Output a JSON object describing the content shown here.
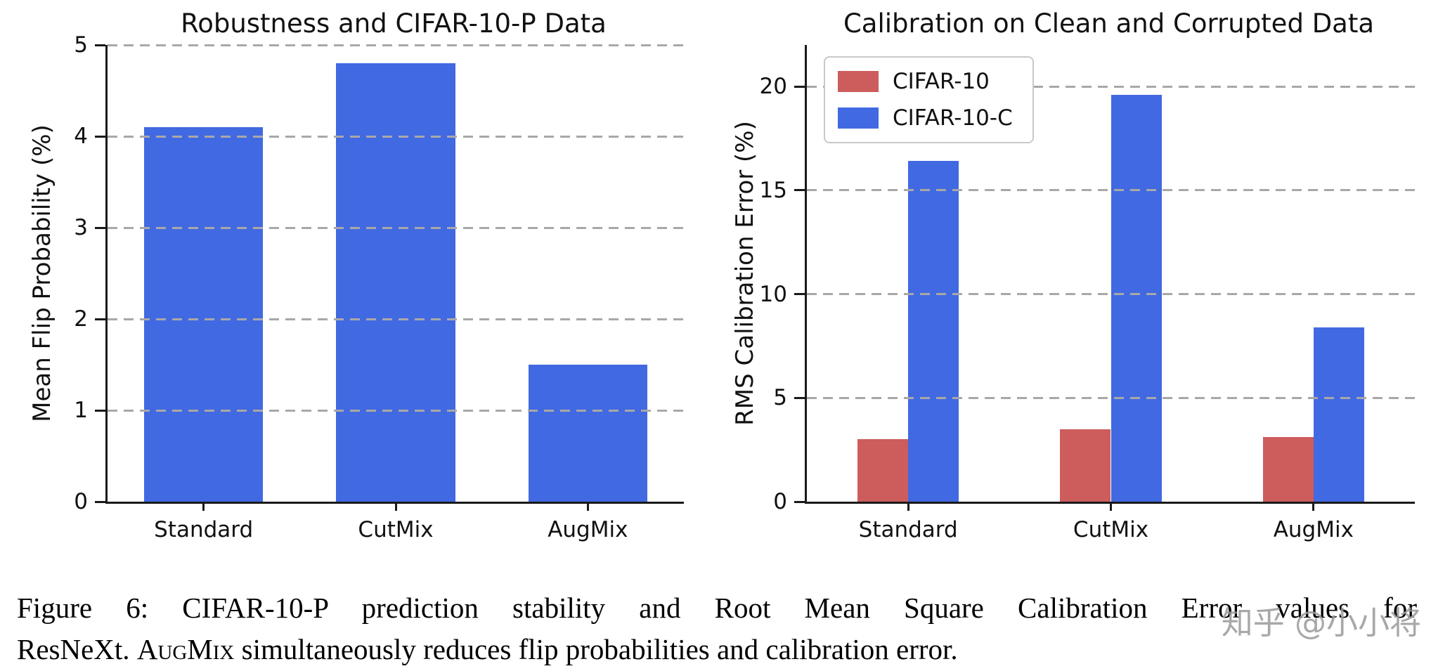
{
  "figure": {
    "caption": {
      "line1": "Figure 6: CIFAR-10-P prediction stability and Root Mean Square Calibration Error values for",
      "line2_pre": "ResNeXt. ",
      "line2_smallcaps": "AugMix",
      "line2_post": " simultaneously reduces flip probabilities and calibration error."
    },
    "watermark": "知乎 @小小将"
  },
  "chart_data": [
    {
      "type": "bar",
      "title": "Robustness and CIFAR-10-P Data",
      "xlabel": "",
      "ylabel": "Mean Flip Probability (%)",
      "categories": [
        "Standard",
        "CutMix",
        "AugMix"
      ],
      "values": [
        4.1,
        4.8,
        1.5
      ],
      "color": "#4169e1",
      "ylim": [
        0,
        5
      ],
      "yticks": [
        0,
        1,
        2,
        3,
        4,
        5
      ],
      "grid": "dashed-horizontal",
      "legend_position": "none"
    },
    {
      "type": "bar",
      "title": "Calibration on Clean and Corrupted Data",
      "xlabel": "",
      "ylabel": "RMS Calibration Error (%)",
      "categories": [
        "Standard",
        "CutMix",
        "AugMix"
      ],
      "series": [
        {
          "name": "CIFAR-10",
          "color": "#cd5c5c",
          "values": [
            3.0,
            3.5,
            3.1
          ]
        },
        {
          "name": "CIFAR-10-C",
          "color": "#4169e1",
          "values": [
            16.4,
            19.6,
            8.4
          ]
        }
      ],
      "ylim": [
        0,
        22
      ],
      "yticks": [
        0,
        5,
        10,
        15,
        20
      ],
      "grid": "dashed-horizontal",
      "legend_position": "upper-left"
    }
  ]
}
